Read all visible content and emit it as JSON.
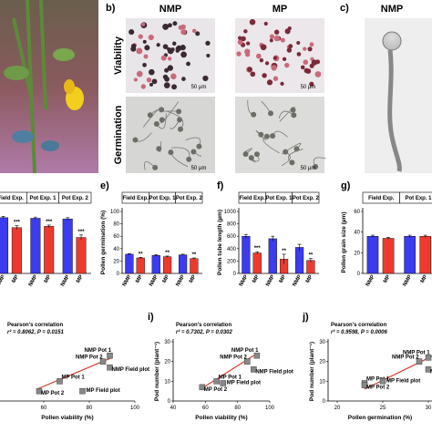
{
  "photos": {
    "b_label": "b)",
    "b_cols": [
      "NMP",
      "MP"
    ],
    "b_rows": [
      "Viability",
      "Germination"
    ],
    "scale_bars": [
      "50 µm",
      "50 µm",
      "50 µm",
      "50 µm"
    ],
    "c_label": "c)",
    "c_col": "NMP"
  },
  "chart_data": [
    {
      "type": "bar",
      "categories": [
        "NMP",
        "MP"
      ],
      "colors": [
        "#3b3bf0",
        "#ee3a2e"
      ],
      "ylim": [
        0,
        100
      ],
      "series": [
        {
          "name": "Field Exp.",
          "values": [
            90,
            74
          ],
          "errors": [
            2,
            3
          ],
          "annotations": [
            null,
            "***"
          ]
        },
        {
          "name": "Pot Exp. 1",
          "values": [
            89,
            76
          ],
          "errors": [
            2,
            2
          ],
          "annotations": [
            null,
            "***"
          ]
        },
        {
          "name": "Pot Exp. 2",
          "values": [
            88,
            58
          ],
          "errors": [
            2,
            4
          ],
          "annotations": [
            null,
            "***"
          ]
        }
      ]
    },
    {
      "type": "bar",
      "label": "e)",
      "y_label": "Pollen germination (%)",
      "categories": [
        "NMP",
        "MP"
      ],
      "colors": [
        "#3b3bf0",
        "#ee3a2e"
      ],
      "ylim": [
        0,
        100
      ],
      "yticks": [
        0,
        20,
        40,
        60,
        80,
        100
      ],
      "series": [
        {
          "name": "Field Exp.",
          "values": [
            31,
            25
          ],
          "errors": [
            1,
            1
          ],
          "annotations": [
            null,
            "**"
          ]
        },
        {
          "name": "Pot Exp. 1",
          "values": [
            29,
            27
          ],
          "errors": [
            1,
            1
          ],
          "annotations": [
            null,
            "**"
          ]
        },
        {
          "name": "Pot Exp. 2",
          "values": [
            30,
            24
          ],
          "errors": [
            1,
            1
          ],
          "annotations": [
            null,
            "**"
          ]
        }
      ]
    },
    {
      "type": "bar",
      "label": "f)",
      "y_label": "Pollen tube length (µm)",
      "categories": [
        "NMP",
        "MP"
      ],
      "colors": [
        "#3b3bf0",
        "#ee3a2e"
      ],
      "ylim": [
        0,
        1000
      ],
      "yticks": [
        0,
        200,
        400,
        600,
        800,
        1000
      ],
      "series": [
        {
          "name": "Field Exp.",
          "values": [
            600,
            330
          ],
          "errors": [
            30,
            20
          ],
          "annotations": [
            null,
            "***"
          ]
        },
        {
          "name": "Pot Exp. 1",
          "values": [
            560,
            230
          ],
          "errors": [
            40,
            80
          ],
          "annotations": [
            null,
            "**"
          ]
        },
        {
          "name": "Pot Exp. 2",
          "values": [
            420,
            210
          ],
          "errors": [
            50,
            30
          ],
          "annotations": [
            null,
            "**"
          ]
        }
      ]
    },
    {
      "type": "bar",
      "label": "g)",
      "y_label": "Pollen grain size (µm)",
      "categories": [
        "NMP",
        "MP"
      ],
      "colors": [
        "#3b3bf0",
        "#ee3a2e"
      ],
      "ylim": [
        0,
        60
      ],
      "yticks": [
        0,
        20,
        40,
        60
      ],
      "series": [
        {
          "name": "Field Exp.",
          "values": [
            36,
            34
          ],
          "errors": [
            1,
            1
          ]
        },
        {
          "name": "Pot Exp. 1",
          "values": [
            36,
            36
          ],
          "errors": [
            1,
            1
          ]
        }
      ]
    },
    {
      "type": "scatter",
      "annotation": "Pearson's correlation",
      "stats": "r² = 0.8062, P = 0.0151",
      "x_label": "Pollen viability (%)",
      "xlim": [
        40,
        100
      ],
      "xticks": [
        60,
        80,
        100
      ],
      "ylim": [
        0,
        30
      ],
      "color": "#888888",
      "fit": [
        [
          57,
          6
        ],
        [
          90,
          22
        ]
      ],
      "fit_color": "#d33a2c",
      "points": [
        {
          "name": "NMP Pot 1",
          "x": 89,
          "y": 23
        },
        {
          "name": "NMP Pot 2",
          "x": 86,
          "y": 20
        },
        {
          "name": "NMP Field plot",
          "x": 89,
          "y": 17
        },
        {
          "name": "MP Pot 1",
          "x": 67,
          "y": 10
        },
        {
          "name": "MP Pot 2",
          "x": 58,
          "y": 5
        },
        {
          "name": "MP Field plot",
          "x": 77,
          "y": 5
        }
      ]
    },
    {
      "type": "scatter",
      "label": "i)",
      "annotation": "Pearson's correlation",
      "stats": "r² = 0.7302, P = 0.0302",
      "x_label": "Pollen viability (%)",
      "y_label": "Pod number (plant⁻¹)",
      "xlim": [
        40,
        100
      ],
      "xticks": [
        40,
        60,
        80,
        100
      ],
      "ylim": [
        0,
        30
      ],
      "yticks": [
        0,
        10,
        20,
        30
      ],
      "color": "#888888",
      "fit": [
        [
          57,
          6
        ],
        [
          90,
          23
        ]
      ],
      "fit_color": "#d33a2c",
      "points": [
        {
          "name": "NMP Pot 1",
          "x": 92,
          "y": 23
        },
        {
          "name": "NMP Pot 2",
          "x": 86,
          "y": 20
        },
        {
          "name": "NMP Field plot",
          "x": 90,
          "y": 16
        },
        {
          "name": "MP Pot 1",
          "x": 67,
          "y": 10
        },
        {
          "name": "MP Pot 2",
          "x": 58,
          "y": 7
        },
        {
          "name": "MP Field plot",
          "x": 71,
          "y": 9
        }
      ]
    },
    {
      "type": "scatter",
      "label": "j)",
      "annotation": "Pearson's correlation",
      "stats": "r² = 0.9598, P = 0.0006",
      "x_label": "Pollen germination (%)",
      "y_label": "Pod number (plant⁻¹)",
      "xlim": [
        19,
        31
      ],
      "xticks": [
        20,
        25,
        30
      ],
      "ylim": [
        0,
        30
      ],
      "yticks": [
        0,
        10,
        20,
        30
      ],
      "color": "#888888",
      "fit": [
        [
          23,
          6
        ],
        [
          31,
          24
        ]
      ],
      "fit_color": "#d33a2c",
      "points": [
        {
          "name": "NMP Pot 1",
          "x": 30,
          "y": 22
        },
        {
          "name": "NMP Pot 2",
          "x": 29,
          "y": 20
        },
        {
          "name": "NMP Field plot",
          "x": 30,
          "y": 16
        },
        {
          "name": "MP Pot 1",
          "x": 23,
          "y": 9
        },
        {
          "name": "MP Pot 2",
          "x": 23,
          "y": 8
        },
        {
          "name": "MP Field plot",
          "x": 25,
          "y": 10
        }
      ]
    }
  ]
}
